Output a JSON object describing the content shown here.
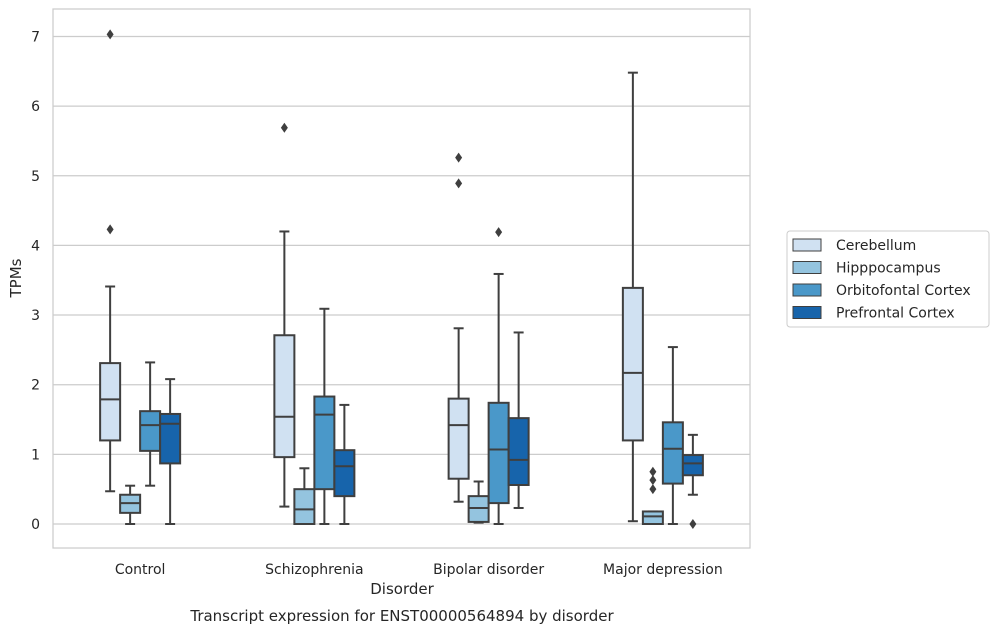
{
  "chart_data": {
    "type": "box",
    "caption": "Transcript expression for ENST00000564894 by disorder",
    "xlabel": "Disorder",
    "ylabel": "TPMs",
    "ylim": [
      -0.33,
      7.4
    ],
    "yticks": [
      0,
      1,
      2,
      3,
      4,
      5,
      6,
      7
    ],
    "grid": "horizontal",
    "legend_position": "right",
    "categories": [
      "Control",
      "Schizophrenia",
      "Bipolar disorder",
      "Major depression"
    ],
    "series": [
      {
        "name": "Cerebellum",
        "color": "#d0e1f2",
        "boxes": [
          {
            "whislo": 0.47,
            "q1": 1.2,
            "med": 1.79,
            "q3": 2.31,
            "whishi": 3.41,
            "fliers": [
              4.23,
              7.03
            ]
          },
          {
            "whislo": 0.25,
            "q1": 0.96,
            "med": 1.54,
            "q3": 2.71,
            "whishi": 4.2,
            "fliers": [
              5.69
            ]
          },
          {
            "whislo": 0.32,
            "q1": 0.65,
            "med": 1.42,
            "q3": 1.8,
            "whishi": 2.81,
            "fliers": [
              4.89,
              5.26
            ]
          },
          {
            "whislo": 0.04,
            "q1": 1.2,
            "med": 2.17,
            "q3": 3.39,
            "whishi": 6.48,
            "fliers": []
          }
        ]
      },
      {
        "name": "Hipppocampus",
        "color": "#94c4df",
        "boxes": [
          {
            "whislo": 0.0,
            "q1": 0.16,
            "med": 0.3,
            "q3": 0.42,
            "whishi": 0.55,
            "fliers": []
          },
          {
            "whislo": 0.0,
            "q1": 0.0,
            "med": 0.21,
            "q3": 0.5,
            "whishi": 0.8,
            "fliers": []
          },
          {
            "whislo": 0.02,
            "q1": 0.03,
            "med": 0.23,
            "q3": 0.4,
            "whishi": 0.61,
            "fliers": []
          },
          {
            "whislo": 0.0,
            "q1": 0.0,
            "med": 0.11,
            "q3": 0.18,
            "whishi": 0.18,
            "fliers": [
              0.5,
              0.63,
              0.75
            ]
          }
        ]
      },
      {
        "name": "Orbitofontal Cortex",
        "color": "#4a98c9",
        "boxes": [
          {
            "whislo": 0.55,
            "q1": 1.05,
            "med": 1.42,
            "q3": 1.62,
            "whishi": 2.32,
            "fliers": []
          },
          {
            "whislo": 0.0,
            "q1": 0.5,
            "med": 1.57,
            "q3": 1.83,
            "whishi": 3.09,
            "fliers": []
          },
          {
            "whislo": 0.0,
            "q1": 0.3,
            "med": 1.07,
            "q3": 1.74,
            "whishi": 3.59,
            "fliers": [
              4.19
            ]
          },
          {
            "whislo": 0.0,
            "q1": 0.58,
            "med": 1.08,
            "q3": 1.46,
            "whishi": 2.54,
            "fliers": []
          }
        ]
      },
      {
        "name": "Prefrontal Cortex",
        "color": "#1764ab",
        "boxes": [
          {
            "whislo": 0.0,
            "q1": 0.87,
            "med": 1.44,
            "q3": 1.58,
            "whishi": 2.08,
            "fliers": []
          },
          {
            "whislo": 0.0,
            "q1": 0.4,
            "med": 0.83,
            "q3": 1.06,
            "whishi": 1.71,
            "fliers": []
          },
          {
            "whislo": 0.23,
            "q1": 0.56,
            "med": 0.92,
            "q3": 1.52,
            "whishi": 2.75,
            "fliers": []
          },
          {
            "whislo": 0.42,
            "q1": 0.7,
            "med": 0.87,
            "q3": 0.99,
            "whishi": 1.28,
            "fliers": [
              0.0
            ]
          }
        ]
      }
    ]
  }
}
